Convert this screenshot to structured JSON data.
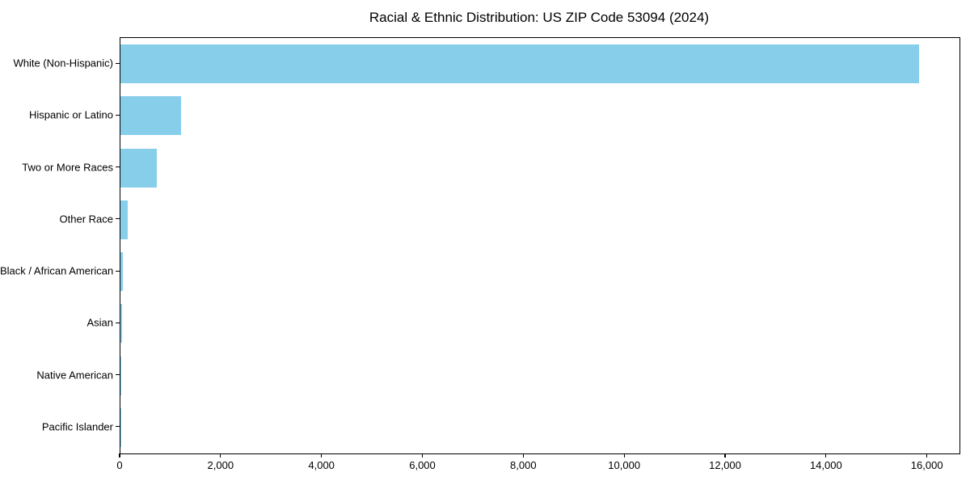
{
  "chart_data": {
    "type": "bar",
    "orientation": "horizontal",
    "title": "Racial & Ethnic Distribution: US ZIP Code 53094 (2024)",
    "categories": [
      "White (Non-Hispanic)",
      "Hispanic or Latino",
      "Two or More Races",
      "Other Race",
      "Black / African American",
      "Asian",
      "Native American",
      "Pacific Islander"
    ],
    "values": [
      15830,
      1200,
      720,
      150,
      50,
      40,
      10,
      3
    ],
    "xlabel": "",
    "ylabel": "",
    "xlim": [
      0,
      16630
    ],
    "x_ticks": [
      0,
      2000,
      4000,
      6000,
      8000,
      10000,
      12000,
      14000,
      16000
    ],
    "x_tick_labels": [
      "0",
      "2,000",
      "4,000",
      "6,000",
      "8,000",
      "10,000",
      "12,000",
      "14,000",
      "16,000"
    ],
    "bar_color": "#87CEEB",
    "axis_color": "#000000",
    "background": "#FFFFFF",
    "grid": false,
    "legend": "none"
  }
}
